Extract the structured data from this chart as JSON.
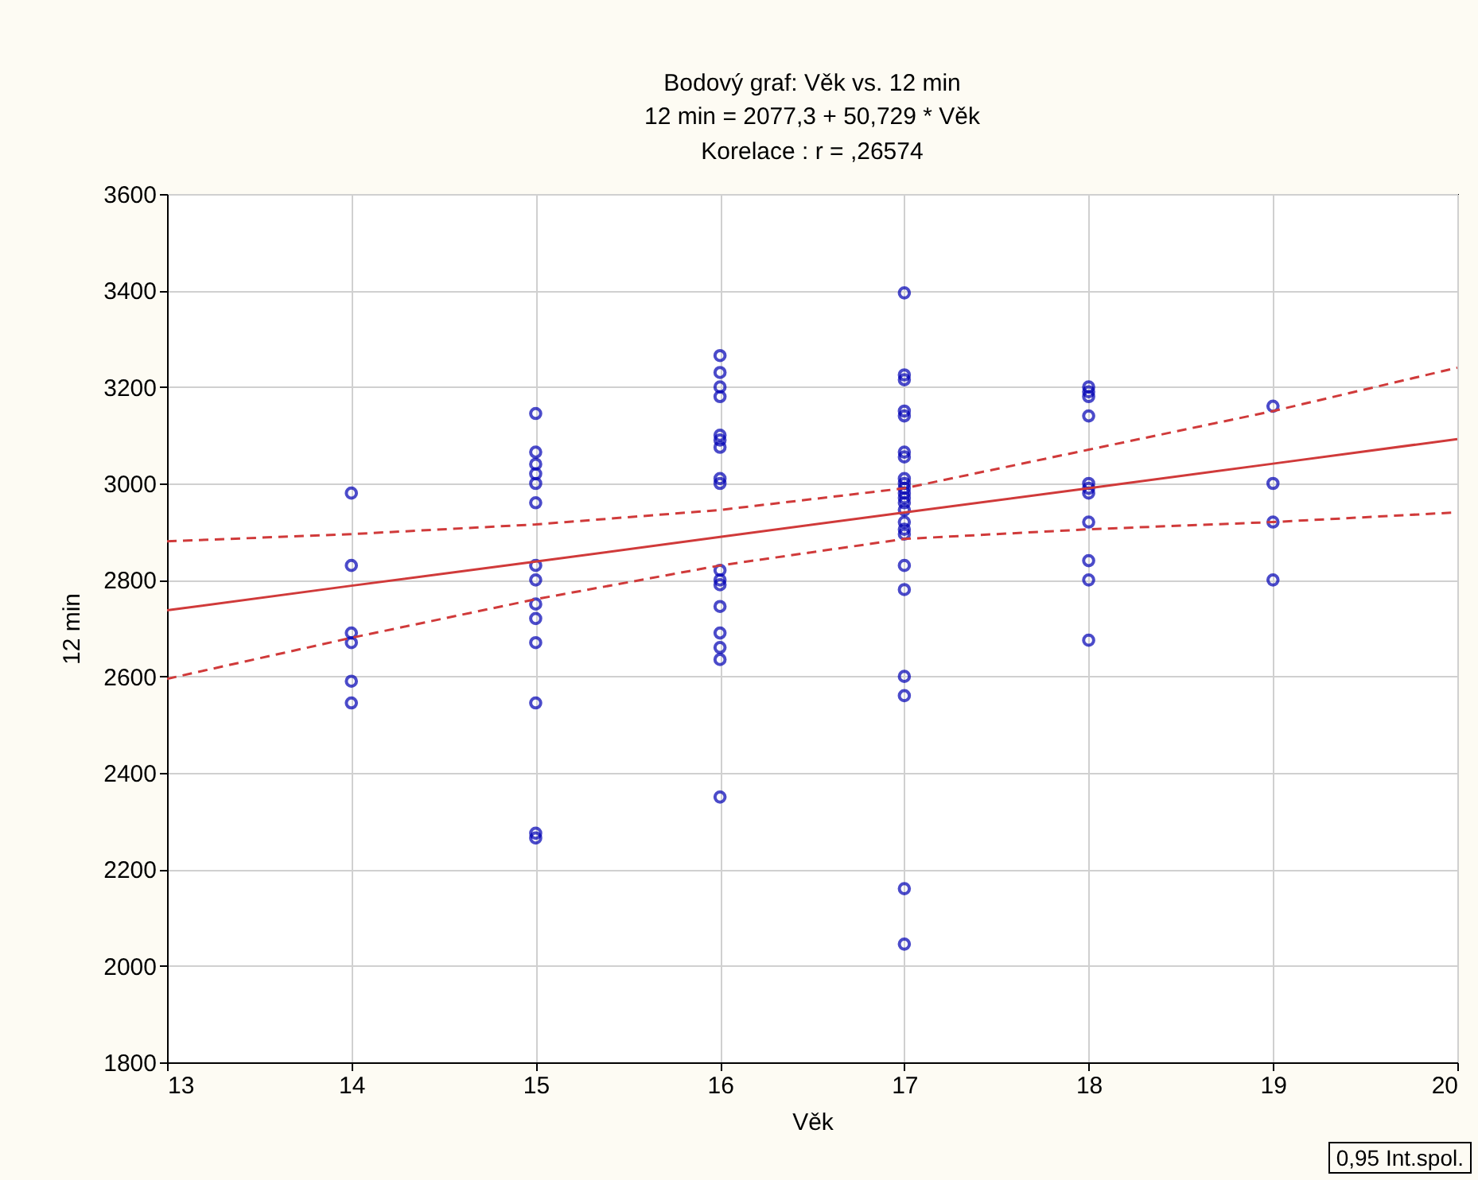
{
  "chart_data": {
    "type": "scatter",
    "title": "Bodový graf: Věk     vs. 12 min",
    "subtitle": "12 min = 2077,3 + 50,729 * Věk",
    "xlabel": "Věk",
    "ylabel": "12 min",
    "annotations": [
      "Korelace :   r = ,26574",
      "0,95 Int.spol."
    ],
    "xlim": [
      13,
      20
    ],
    "xticks": [
      13,
      14,
      15,
      16,
      17,
      18,
      19,
      20
    ],
    "ylim": [
      1800,
      3600
    ],
    "yticks": [
      1800,
      2000,
      2200,
      2400,
      2600,
      2800,
      3000,
      3200,
      3400,
      3600
    ],
    "grid": true,
    "marker": "circle",
    "series": [
      {
        "color": "#0000b4",
        "x": [
          14,
          14,
          14,
          14,
          14,
          14,
          15,
          15,
          15,
          15,
          15,
          15,
          15,
          15,
          15,
          15,
          15,
          15,
          15,
          15,
          16,
          16,
          16,
          16,
          16,
          16,
          16,
          16,
          16,
          16,
          16,
          16,
          16,
          16,
          16,
          16,
          16,
          17,
          17,
          17,
          17,
          17,
          17,
          17,
          17,
          17,
          17,
          17,
          17,
          17,
          17,
          17,
          17,
          17,
          17,
          17,
          17,
          17,
          17,
          17,
          18,
          18,
          18,
          18,
          18,
          18,
          18,
          18,
          18,
          18,
          18,
          19,
          19,
          19,
          19
        ],
        "values": [
          2980,
          2830,
          2690,
          2670,
          2590,
          2545,
          3145,
          3065,
          3040,
          3020,
          3000,
          2960,
          2830,
          2800,
          2750,
          2720,
          2670,
          2545,
          2275,
          2265,
          3265,
          3230,
          3200,
          3180,
          3100,
          3090,
          3075,
          3010,
          3000,
          2820,
          2800,
          2790,
          2745,
          2690,
          2660,
          2635,
          2350,
          3395,
          3225,
          3215,
          3150,
          3140,
          3065,
          3055,
          3010,
          3000,
          2990,
          2980,
          2970,
          2960,
          2945,
          2920,
          2905,
          2895,
          2830,
          2780,
          2600,
          2560,
          2160,
          2045,
          3200,
          3190,
          3180,
          3140,
          3000,
          2990,
          2980,
          2920,
          2840,
          2800,
          2675,
          3160,
          3000,
          2920,
          2800
        ]
      },
      {
        "type": "line",
        "color": "#d03a3a",
        "marker": "none",
        "line_style": "solid",
        "x": [
          13,
          14,
          15,
          16,
          17,
          18,
          19,
          20
        ],
        "values": [
          2737,
          2788,
          2838,
          2889,
          2940,
          2990,
          3041,
          3092
        ]
      },
      {
        "type": "line",
        "color": "#d03a3a",
        "marker": "none",
        "line_style": "dashed",
        "x": [
          13,
          14,
          15,
          16,
          17,
          18,
          19,
          20
        ],
        "values": [
          2595,
          2680,
          2760,
          2830,
          2885,
          2905,
          2920,
          2940
        ]
      },
      {
        "type": "line",
        "color": "#d03a3a",
        "marker": "none",
        "line_style": "dashed",
        "x": [
          13,
          14,
          15,
          16,
          17,
          18,
          19,
          20
        ],
        "values": [
          2880,
          2895,
          2915,
          2945,
          2990,
          3070,
          3150,
          3240
        ]
      }
    ]
  }
}
